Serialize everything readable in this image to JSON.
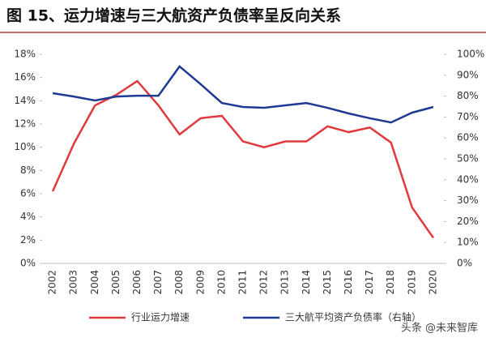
{
  "chart_data": {
    "type": "line",
    "title": "图 15、运力增速与三大航资产负债率呈反向关系",
    "categories": [
      "2002",
      "2003",
      "2004",
      "2005",
      "2006",
      "2007",
      "2008",
      "2009",
      "2010",
      "2011",
      "2012",
      "2013",
      "2014",
      "2015",
      "2016",
      "2017",
      "2018",
      "2019",
      "2020"
    ],
    "series": [
      {
        "name": "行业运力增速",
        "color": "#e03a3e",
        "values": [
          6.2,
          10.3,
          13.6,
          14.5,
          15.7,
          13.6,
          11.1,
          12.5,
          12.7,
          10.5,
          10.0,
          10.5,
          10.5,
          11.8,
          11.3,
          11.7,
          10.4,
          4.8,
          2.2
        ]
      },
      {
        "name": "三大航平均资产负债率（右轴）",
        "color": "#1f3a93",
        "axis": "y2",
        "values": [
          81.4,
          79.8,
          77.9,
          79.8,
          80.2,
          80.2,
          94.2,
          85.7,
          76.7,
          74.8,
          74.4,
          75.6,
          76.7,
          74.4,
          71.7,
          69.4,
          67.4,
          72.1,
          74.8
        ]
      }
    ],
    "ylim": [
      0,
      18
    ],
    "yticks": [
      {
        "value": 0,
        "label": "0%"
      },
      {
        "value": 2,
        "label": "2%"
      },
      {
        "value": 4,
        "label": "4%"
      },
      {
        "value": 6,
        "label": "6%"
      },
      {
        "value": 8,
        "label": "8%"
      },
      {
        "value": 10,
        "label": "10%"
      },
      {
        "value": 12,
        "label": "12%"
      },
      {
        "value": 14,
        "label": "14%"
      },
      {
        "value": 16,
        "label": "16%"
      },
      {
        "value": 18,
        "label": "18%"
      }
    ],
    "y2lim": [
      0,
      100
    ],
    "y2ticks": [
      {
        "value": 0,
        "label": "0%"
      },
      {
        "value": 10,
        "label": "10%"
      },
      {
        "value": 20,
        "label": "20%"
      },
      {
        "value": 30,
        "label": "30%"
      },
      {
        "value": 40,
        "label": "40%"
      },
      {
        "value": 50,
        "label": "50%"
      },
      {
        "value": 60,
        "label": "60%"
      },
      {
        "value": 70,
        "label": "70%"
      },
      {
        "value": 80,
        "label": "80%"
      },
      {
        "value": 90,
        "label": "90%"
      },
      {
        "value": 100,
        "label": "100%"
      }
    ],
    "legend": "bottom",
    "watermark": "头条 @未来智库"
  }
}
